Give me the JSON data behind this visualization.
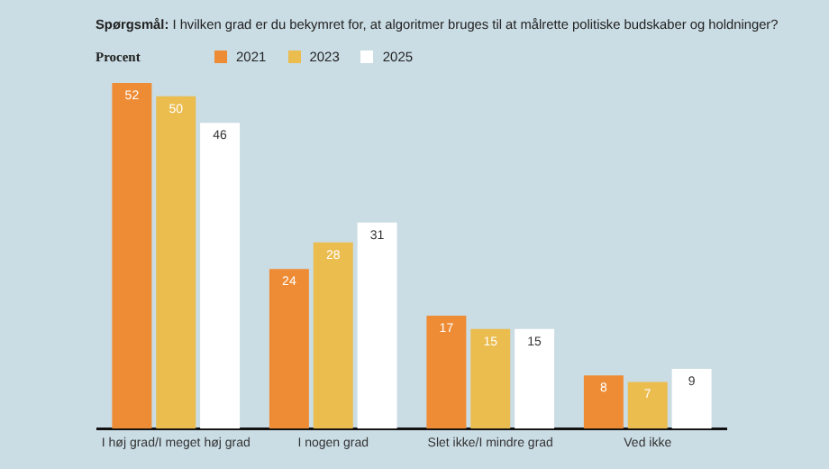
{
  "chart_data": {
    "type": "bar",
    "title": "Spørgsmål: I hvilken grad er du bekymret for, at algoritmer bruges til at målrette politiske budskaber og holdninger?",
    "ylabel": "Procent",
    "categories": [
      "I høj grad/I meget høj grad",
      "I nogen grad",
      "Slet ikke/I mindre grad",
      "Ved ikke"
    ],
    "series": [
      {
        "name": "2021",
        "color": "#ee8c35",
        "values": [
          52,
          24,
          17,
          8
        ]
      },
      {
        "name": "2023",
        "color": "#ebbc4e",
        "values": [
          50,
          28,
          15,
          7
        ]
      },
      {
        "name": "2025",
        "color": "#ffffff",
        "values": [
          46,
          31,
          15,
          9
        ]
      }
    ],
    "data_labels": true,
    "legend": "top",
    "grid": false
  }
}
